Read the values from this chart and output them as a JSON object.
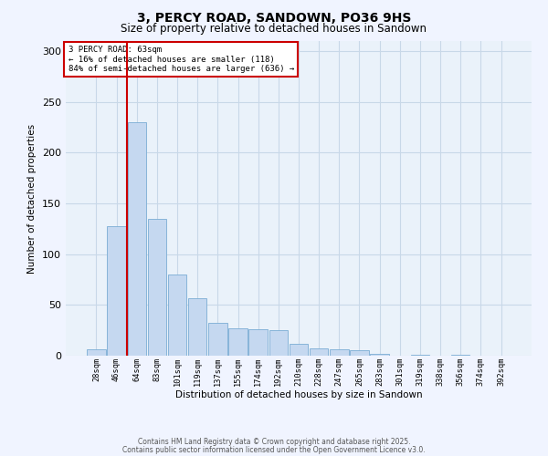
{
  "title": "3, PERCY ROAD, SANDOWN, PO36 9HS",
  "subtitle": "Size of property relative to detached houses in Sandown",
  "xlabel": "Distribution of detached houses by size in Sandown",
  "ylabel": "Number of detached properties",
  "categories": [
    "28sqm",
    "46sqm",
    "64sqm",
    "83sqm",
    "101sqm",
    "119sqm",
    "137sqm",
    "155sqm",
    "174sqm",
    "192sqm",
    "210sqm",
    "228sqm",
    "247sqm",
    "265sqm",
    "283sqm",
    "301sqm",
    "319sqm",
    "338sqm",
    "356sqm",
    "374sqm",
    "392sqm"
  ],
  "values": [
    6,
    128,
    230,
    135,
    80,
    57,
    32,
    27,
    26,
    25,
    12,
    7,
    6,
    5,
    2,
    0,
    1,
    0,
    1,
    0,
    0
  ],
  "bar_color": "#c5d8f0",
  "bar_edge_color": "#7aadd4",
  "grid_color": "#c8d8e8",
  "background_color": "#eaf2fa",
  "fig_background": "#f0f4ff",
  "vline_x_index": 2,
  "vline_color": "#cc0000",
  "annotation_line1": "3 PERCY ROAD: 63sqm",
  "annotation_line2": "← 16% of detached houses are smaller (118)",
  "annotation_line3": "84% of semi-detached houses are larger (636) →",
  "annotation_box_color": "#cc0000",
  "ylim": [
    0,
    310
  ],
  "yticks": [
    0,
    50,
    100,
    150,
    200,
    250,
    300
  ],
  "footer_line1": "Contains HM Land Registry data © Crown copyright and database right 2025.",
  "footer_line2": "Contains public sector information licensed under the Open Government Licence v3.0."
}
